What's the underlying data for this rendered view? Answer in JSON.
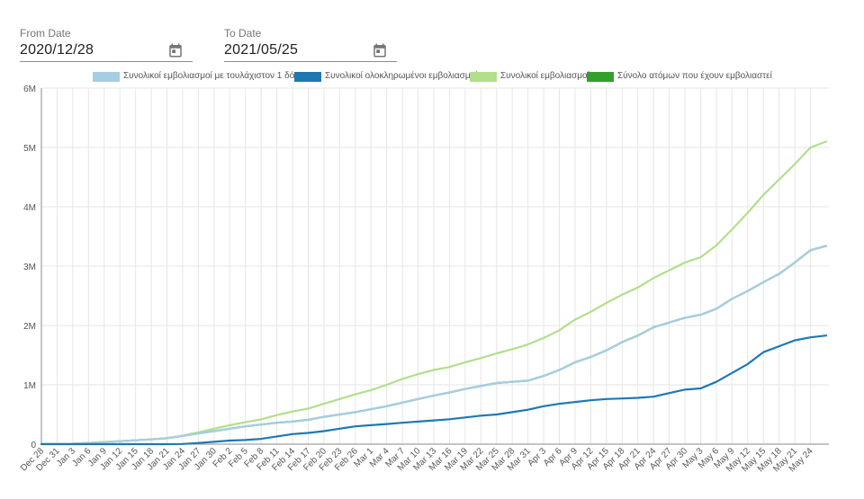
{
  "filters": {
    "from_label": "From Date",
    "from_value": "2020/12/28",
    "to_label": "To Date",
    "to_value": "2021/05/25",
    "calendar_icon": "calendar-icon"
  },
  "colors": {
    "series_1": "#a6cee3",
    "series_2": "#1f78b4",
    "series_3": "#b2df8a",
    "series_4": "#33a02c",
    "grid": "#e6e6e6",
    "axis": "#888888"
  },
  "chart_data": {
    "type": "line",
    "legend_position": "top",
    "grid": true,
    "ylim": [
      0,
      6000000
    ],
    "y_ticks": [
      0,
      1000000,
      2000000,
      3000000,
      4000000,
      5000000,
      6000000
    ],
    "y_tick_labels": [
      "0",
      "1M",
      "2M",
      "3M",
      "4M",
      "5M",
      "6M"
    ],
    "x_tick_labels": [
      "Dec 28",
      "Dec 31",
      "Jan 3",
      "Jan 6",
      "Jan 9",
      "Jan 12",
      "Jan 15",
      "Jan 18",
      "Jan 21",
      "Jan 24",
      "Jan 27",
      "Jan 30",
      "Feb 2",
      "Feb 5",
      "Feb 8",
      "Feb 11",
      "Feb 14",
      "Feb 17",
      "Feb 20",
      "Feb 23",
      "Feb 26",
      "Mar 1",
      "Mar 4",
      "Mar 7",
      "Mar 10",
      "Mar 13",
      "Mar 16",
      "Mar 19",
      "Mar 22",
      "Mar 25",
      "Mar 28",
      "Mar 31",
      "Apr 3",
      "Apr 6",
      "Apr 9",
      "Apr 12",
      "Apr 15",
      "Apr 18",
      "Apr 21",
      "Apr 24",
      "Apr 27",
      "Apr 30",
      "May 3",
      "May 6",
      "May 9",
      "May 12",
      "May 15",
      "May 18",
      "May 21",
      "May 24"
    ],
    "x": [
      "Dec 28",
      "Dec 31",
      "Jan 3",
      "Jan 6",
      "Jan 9",
      "Jan 12",
      "Jan 15",
      "Jan 18",
      "Jan 21",
      "Jan 24",
      "Jan 27",
      "Jan 30",
      "Feb 2",
      "Feb 5",
      "Feb 8",
      "Feb 11",
      "Feb 14",
      "Feb 17",
      "Feb 20",
      "Feb 23",
      "Feb 26",
      "Mar 1",
      "Mar 4",
      "Mar 7",
      "Mar 10",
      "Mar 13",
      "Mar 16",
      "Mar 19",
      "Mar 22",
      "Mar 25",
      "Mar 28",
      "Mar 31",
      "Apr 3",
      "Apr 6",
      "Apr 9",
      "Apr 12",
      "Apr 15",
      "Apr 18",
      "Apr 21",
      "Apr 24",
      "Apr 27",
      "Apr 30",
      "May 3",
      "May 6",
      "May 9",
      "May 12",
      "May 15",
      "May 18",
      "May 21",
      "May 24",
      "May 25"
    ],
    "series": [
      {
        "name": "Συνολικοί εμβολιασμοί με τουλάχιστον 1 δόση",
        "color": "#a6cee3",
        "values": [
          1000,
          3000,
          8000,
          20000,
          35000,
          50000,
          65000,
          80000,
          100000,
          140000,
          180000,
          220000,
          260000,
          300000,
          330000,
          360000,
          380000,
          410000,
          460000,
          500000,
          540000,
          590000,
          640000,
          700000,
          760000,
          820000,
          870000,
          930000,
          980000,
          1030000,
          1050000,
          1070000,
          1150000,
          1250000,
          1380000,
          1470000,
          1580000,
          1720000,
          1830000,
          1970000,
          2050000,
          2130000,
          2180000,
          2280000,
          2450000,
          2580000,
          2730000,
          2870000,
          3060000,
          3270000,
          3340000
        ]
      },
      {
        "name": "Συνολικοί ολοκληρωμένοι εμβολιασμοί",
        "color": "#1f78b4",
        "values": [
          0,
          0,
          0,
          0,
          0,
          0,
          0,
          0,
          0,
          3000,
          20000,
          40000,
          60000,
          70000,
          90000,
          130000,
          170000,
          190000,
          220000,
          260000,
          300000,
          320000,
          340000,
          360000,
          380000,
          400000,
          420000,
          450000,
          480000,
          500000,
          540000,
          580000,
          640000,
          680000,
          710000,
          740000,
          760000,
          770000,
          780000,
          800000,
          860000,
          920000,
          940000,
          1050000,
          1200000,
          1350000,
          1550000,
          1650000,
          1750000,
          1800000,
          1830000
        ]
      },
      {
        "name": "Συνολικοί εμβολιασμοί",
        "color": "#b2df8a",
        "values": [
          1000,
          3000,
          8000,
          20000,
          35000,
          50000,
          65000,
          80000,
          100000,
          145000,
          200000,
          260000,
          320000,
          370000,
          420000,
          490000,
          550000,
          600000,
          680000,
          760000,
          840000,
          910000,
          1000000,
          1100000,
          1180000,
          1250000,
          1300000,
          1380000,
          1450000,
          1530000,
          1600000,
          1680000,
          1790000,
          1920000,
          2100000,
          2230000,
          2380000,
          2520000,
          2640000,
          2800000,
          2930000,
          3060000,
          3150000,
          3350000,
          3620000,
          3900000,
          4200000,
          4460000,
          4720000,
          5000000,
          5100000
        ]
      },
      {
        "name": "Σύνολο ατόμων που έχουν εμβολιαστεί",
        "color": "#33a02c",
        "values": [
          1000,
          3000,
          8000,
          20000,
          35000,
          50000,
          65000,
          80000,
          100000,
          140000,
          180000,
          220000,
          260000,
          300000,
          330000,
          360000,
          380000,
          410000,
          460000,
          500000,
          540000,
          590000,
          640000,
          700000,
          760000,
          820000,
          870000,
          930000,
          980000,
          1030000,
          1050000,
          1070000,
          1150000,
          1250000,
          1380000,
          1470000,
          1580000,
          1720000,
          1830000,
          1970000,
          2050000,
          2130000,
          2180000,
          2280000,
          2450000,
          2580000,
          2730000,
          2870000,
          3060000,
          3270000,
          3340000
        ]
      }
    ]
  }
}
